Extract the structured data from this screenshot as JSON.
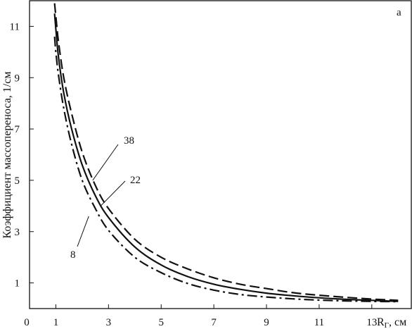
{
  "chart_data": {
    "type": "line",
    "title": "",
    "panel_label": "a",
    "ylabel": "Коэффициент массопереноса, 1/см",
    "xlabel_main": "R",
    "xlabel_sub": "Г",
    "xlabel_unit": ", см",
    "xlim": [
      0,
      14.5
    ],
    "ylim": [
      0,
      12
    ],
    "origin_label": "0",
    "x_ticks": [
      1,
      3,
      5,
      7,
      9,
      11,
      13
    ],
    "x_tick_labels": [
      "1",
      "3",
      "5",
      "7",
      "9",
      "11",
      "13"
    ],
    "y_ticks": [
      1,
      3,
      5,
      7,
      9,
      11
    ],
    "y_tick_labels": [
      "1",
      "3",
      "5",
      "7",
      "9",
      "11"
    ],
    "grid": false,
    "legend": "none",
    "series": [
      {
        "name": "38",
        "style": "dashed",
        "color": "#111111",
        "x": [
          0.95,
          1.0,
          1.1,
          1.3,
          1.6,
          2.0,
          2.5,
          3.0,
          4.0,
          5.0,
          6.0,
          7.0,
          8.0,
          9.0,
          10.0,
          11.0,
          12.0,
          13.0,
          14.0
        ],
        "y": [
          11.9,
          11.4,
          10.4,
          9.0,
          7.6,
          6.1,
          4.8,
          3.9,
          2.7,
          2.0,
          1.55,
          1.2,
          0.95,
          0.78,
          0.62,
          0.52,
          0.44,
          0.37,
          0.32
        ]
      },
      {
        "name": "22",
        "style": "solid",
        "color": "#111111",
        "x": [
          0.95,
          1.0,
          1.1,
          1.3,
          1.6,
          2.0,
          2.5,
          3.0,
          4.0,
          5.0,
          6.0,
          7.0,
          8.0,
          9.0,
          10.0,
          11.0,
          12.0,
          13.0,
          14.0
        ],
        "y": [
          11.5,
          10.9,
          9.8,
          8.4,
          7.0,
          5.6,
          4.4,
          3.55,
          2.4,
          1.7,
          1.25,
          0.95,
          0.75,
          0.6,
          0.5,
          0.42,
          0.36,
          0.32,
          0.28
        ]
      },
      {
        "name": "8",
        "style": "dashdot",
        "color": "#111111",
        "x": [
          0.95,
          1.0,
          1.1,
          1.3,
          1.6,
          2.0,
          2.5,
          3.0,
          4.0,
          5.0,
          6.0,
          7.0,
          8.0,
          9.0,
          10.0,
          11.0,
          12.0,
          13.0,
          14.0
        ],
        "y": [
          10.6,
          10.0,
          9.1,
          7.8,
          6.4,
          5.0,
          3.9,
          3.05,
          2.0,
          1.4,
          0.98,
          0.72,
          0.55,
          0.45,
          0.38,
          0.33,
          0.3,
          0.28,
          0.27
        ]
      }
    ],
    "annotations": [
      {
        "text": "38",
        "series": "38"
      },
      {
        "text": "22",
        "series": "22"
      },
      {
        "text": "8",
        "series": "8"
      }
    ]
  }
}
